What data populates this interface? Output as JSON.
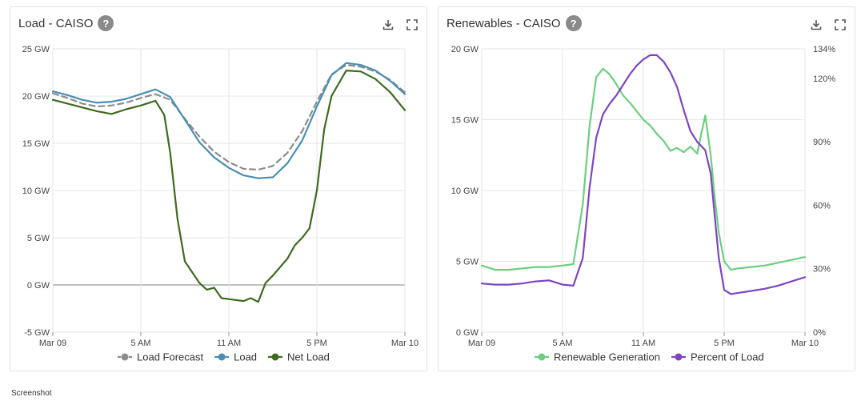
{
  "caption": "Screenshot",
  "colors": {
    "load_forecast": "#8c8c8c",
    "load": "#4a8fb3",
    "net_load": "#3e6b1f",
    "renewable_generation": "#6ccf7f",
    "percent_of_load": "#7e45c1",
    "grid": "#e6e6e6",
    "help_bg": "#8a8a8a"
  },
  "icons": {
    "download": "download-icon",
    "fullscreen": "fullscreen-icon",
    "help": "help-icon"
  },
  "panels": {
    "load": {
      "title": "Load - CAISO",
      "help": "?"
    },
    "renewables": {
      "title": "Renewables - CAISO",
      "help": "?"
    }
  },
  "chart_data": [
    {
      "type": "line",
      "title": "Load - CAISO",
      "x_ticks": [
        "Mar 09",
        "5 AM",
        "11 AM",
        "5 PM",
        "Mar 10"
      ],
      "x_hours": [
        0,
        24
      ],
      "ylim": [
        -5,
        25
      ],
      "y_ticks": [
        {
          "v": 25,
          "label": "25 GW"
        },
        {
          "v": 20,
          "label": "20 GW"
        },
        {
          "v": 15,
          "label": "15 GW"
        },
        {
          "v": 10,
          "label": "10 GW"
        },
        {
          "v": 5,
          "label": "5 GW"
        },
        {
          "v": 0,
          "label": "0 GW"
        },
        {
          "v": -5,
          "label": "-5 GW"
        }
      ],
      "series": [
        {
          "key": "load_forecast",
          "name": "Load Forecast",
          "dashed": true,
          "x": [
            0,
            1,
            2,
            3,
            4,
            5,
            6,
            7,
            8,
            9,
            10,
            11,
            12,
            13,
            14,
            15,
            16,
            17,
            18,
            19,
            20,
            21,
            22,
            23,
            24
          ],
          "values": [
            20.3,
            19.8,
            19.2,
            18.9,
            19.0,
            19.3,
            19.8,
            20.2,
            19.6,
            17.6,
            15.7,
            14.1,
            13.0,
            12.3,
            12.2,
            12.6,
            14.0,
            16.3,
            19.4,
            22.3,
            23.3,
            23.1,
            22.6,
            21.7,
            20.4
          ]
        },
        {
          "key": "load",
          "name": "Load",
          "dashed": false,
          "x": [
            0,
            1,
            2,
            3,
            4,
            5,
            6,
            7,
            8,
            9,
            10,
            11,
            12,
            13,
            14,
            15,
            16,
            17,
            18,
            19,
            20,
            21,
            22,
            23,
            24
          ],
          "values": [
            20.5,
            20.1,
            19.6,
            19.3,
            19.4,
            19.7,
            20.2,
            20.7,
            19.9,
            17.5,
            15.1,
            13.5,
            12.4,
            11.6,
            11.3,
            11.4,
            12.9,
            15.3,
            18.9,
            22.2,
            23.5,
            23.3,
            22.7,
            21.6,
            20.2
          ]
        },
        {
          "key": "net_load",
          "name": "Net Load",
          "dashed": false,
          "x": [
            0,
            1,
            2,
            3,
            4,
            5,
            6,
            7,
            7.6,
            8,
            8.5,
            9,
            10,
            10.5,
            11,
            11.5,
            12,
            13,
            13.5,
            14,
            14.5,
            15,
            16,
            16.5,
            17,
            17.5,
            18,
            18.5,
            19,
            20,
            21,
            22,
            23,
            24
          ],
          "values": [
            19.6,
            19.2,
            18.8,
            18.4,
            18.1,
            18.6,
            19.0,
            19.5,
            18.0,
            14.0,
            7.0,
            2.5,
            0.2,
            -0.5,
            -0.3,
            -1.4,
            -1.5,
            -1.7,
            -1.4,
            -1.8,
            0.2,
            1.0,
            2.8,
            4.2,
            5.0,
            6.0,
            10.0,
            16.5,
            20.0,
            22.7,
            22.6,
            21.8,
            20.4,
            18.5
          ]
        }
      ]
    },
    {
      "type": "line",
      "title": "Renewables - CAISO",
      "x_ticks": [
        "Mar 09",
        "5 AM",
        "11 AM",
        "5 PM",
        "Mar 10"
      ],
      "x_hours": [
        0,
        24
      ],
      "ylim": [
        0,
        20
      ],
      "y_ticks": [
        {
          "v": 20,
          "label": "20 GW"
        },
        {
          "v": 15,
          "label": "15 GW"
        },
        {
          "v": 10,
          "label": "10 GW"
        },
        {
          "v": 5,
          "label": "5 GW"
        },
        {
          "v": 0,
          "label": "0 GW"
        }
      ],
      "y2lim": [
        0,
        134
      ],
      "y2_ticks": [
        {
          "v": 134,
          "label": "134%"
        },
        {
          "v": 120,
          "label": "120%"
        },
        {
          "v": 90,
          "label": "90%"
        },
        {
          "v": 60,
          "label": "60%"
        },
        {
          "v": 30,
          "label": "30%"
        },
        {
          "v": 0,
          "label": "0%"
        }
      ],
      "series": [
        {
          "key": "renewable_generation",
          "name": "Renewable Generation",
          "axis": "left",
          "x": [
            0,
            1,
            2,
            3,
            4,
            5,
            6,
            6.8,
            7.5,
            8,
            8.5,
            9,
            9.5,
            10,
            10.5,
            11,
            11.5,
            12,
            12.5,
            13,
            13.5,
            14,
            14.5,
            15,
            15.5,
            16,
            16.3,
            16.6,
            17,
            17.3,
            17.6,
            18,
            18.5,
            19,
            20,
            21,
            22,
            23,
            24
          ],
          "values": [
            4.7,
            4.4,
            4.4,
            4.5,
            4.6,
            4.6,
            4.7,
            4.8,
            9.0,
            14.5,
            18.0,
            18.6,
            18.2,
            17.5,
            16.7,
            16.2,
            15.6,
            15.0,
            14.6,
            14.0,
            13.5,
            12.8,
            13.0,
            12.7,
            13.1,
            12.6,
            14.0,
            15.3,
            12.5,
            9.5,
            7.0,
            5.0,
            4.4,
            4.5,
            4.6,
            4.7,
            4.9,
            5.1,
            5.3
          ]
        },
        {
          "key": "percent_of_load",
          "name": "Percent of Load",
          "axis": "right",
          "x": [
            0,
            1,
            2,
            3,
            4,
            5,
            6,
            6.8,
            7.5,
            8,
            8.5,
            9,
            9.5,
            10,
            10.5,
            11,
            11.5,
            12,
            12.5,
            13,
            13.5,
            14,
            14.5,
            15,
            15.5,
            16,
            16.3,
            16.6,
            17,
            17.3,
            17.6,
            18,
            18.5,
            19,
            20,
            21,
            22,
            23,
            24
          ],
          "values": [
            23,
            22.5,
            22.5,
            23,
            24,
            24.5,
            22.5,
            22,
            35,
            68,
            92,
            103,
            108,
            112,
            117,
            122,
            126,
            129,
            131,
            131,
            128,
            123,
            116,
            105,
            95,
            90,
            88,
            86,
            75,
            55,
            35,
            20,
            18,
            18.5,
            19.5,
            20.5,
            22,
            24,
            26
          ]
        }
      ]
    }
  ]
}
